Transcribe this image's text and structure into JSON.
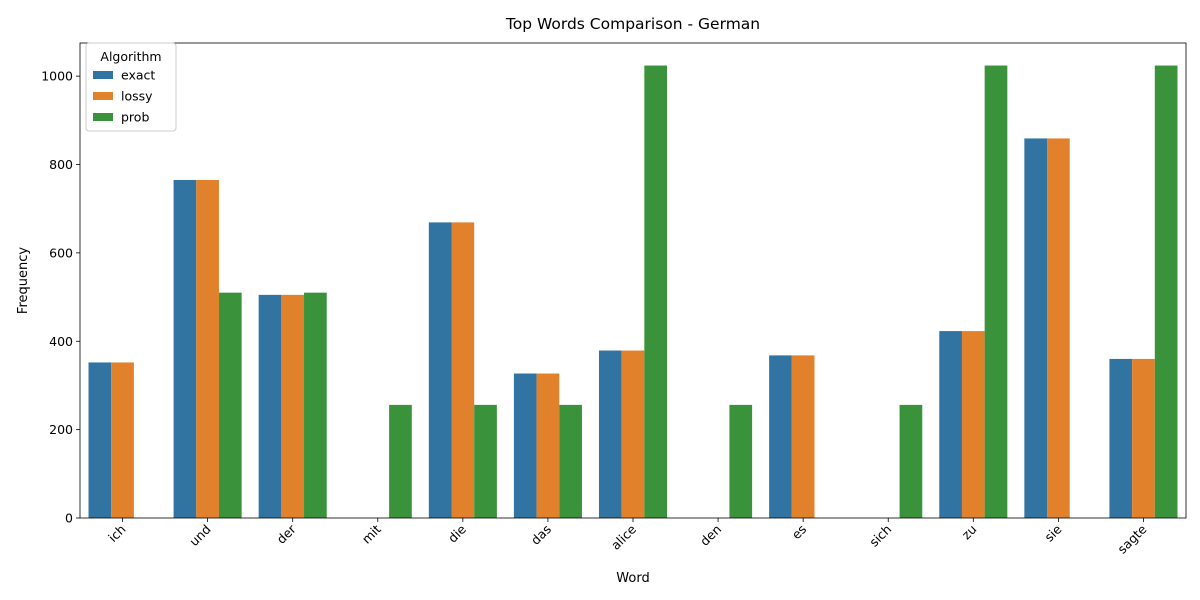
{
  "chart_data": {
    "type": "bar",
    "title": "Top Words Comparison - German",
    "xlabel": "Word",
    "ylabel": "Frequency",
    "ylim": [
      0,
      1075
    ],
    "yticks": [
      0,
      200,
      400,
      600,
      800,
      1000
    ],
    "legend": {
      "title": "Algorithm",
      "placement": "top-left"
    },
    "categories": [
      "ich",
      "und",
      "der",
      "mit",
      "die",
      "das",
      "alice",
      "den",
      "es",
      "sich",
      "zu",
      "sie",
      "sagte"
    ],
    "series": [
      {
        "name": "exact",
        "color": "#3274a1",
        "values": [
          352,
          765,
          505,
          0,
          669,
          327,
          379,
          0,
          368,
          0,
          423,
          859,
          360
        ]
      },
      {
        "name": "lossy",
        "color": "#e1812c",
        "values": [
          352,
          765,
          505,
          0,
          669,
          327,
          379,
          0,
          368,
          0,
          423,
          859,
          360
        ]
      },
      {
        "name": "prob",
        "color": "#3a923a",
        "values": [
          0,
          510,
          510,
          256,
          256,
          256,
          1024,
          256,
          0,
          256,
          1024,
          0,
          1024
        ]
      }
    ],
    "grid": false
  }
}
